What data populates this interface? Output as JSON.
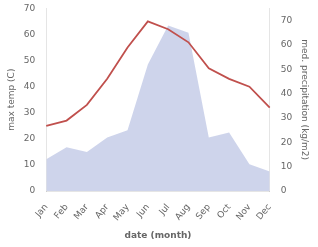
{
  "chart_data": {
    "type": "line",
    "xlabel": "date (month)",
    "ylabel": "max temp (C)",
    "y2label": "med. precipitation (kg/m2)",
    "categories": [
      "Jan",
      "Feb",
      "Mar",
      "Apr",
      "May",
      "Jun",
      "Jul",
      "Aug",
      "Sep",
      "Oct",
      "Nov",
      "Dec"
    ],
    "series": [
      {
        "type": "area",
        "axis": "y2",
        "color": "#c5cce8",
        "values": [
          13,
          18,
          16,
          22,
          25,
          52,
          68,
          65,
          22,
          24,
          11,
          8
        ]
      },
      {
        "type": "line",
        "color": "#c0504d",
        "values": [
          25,
          27,
          33,
          43,
          55,
          65,
          62,
          57,
          47,
          43,
          40,
          32
        ]
      }
    ],
    "ylim": [
      0,
      70
    ],
    "yticks": [
      0,
      10,
      20,
      30,
      40,
      50,
      60,
      70
    ],
    "y2lim": [
      0,
      75
    ],
    "y2ticks": [
      0,
      10,
      20,
      30,
      40,
      50,
      60,
      70
    ],
    "grid": false
  }
}
